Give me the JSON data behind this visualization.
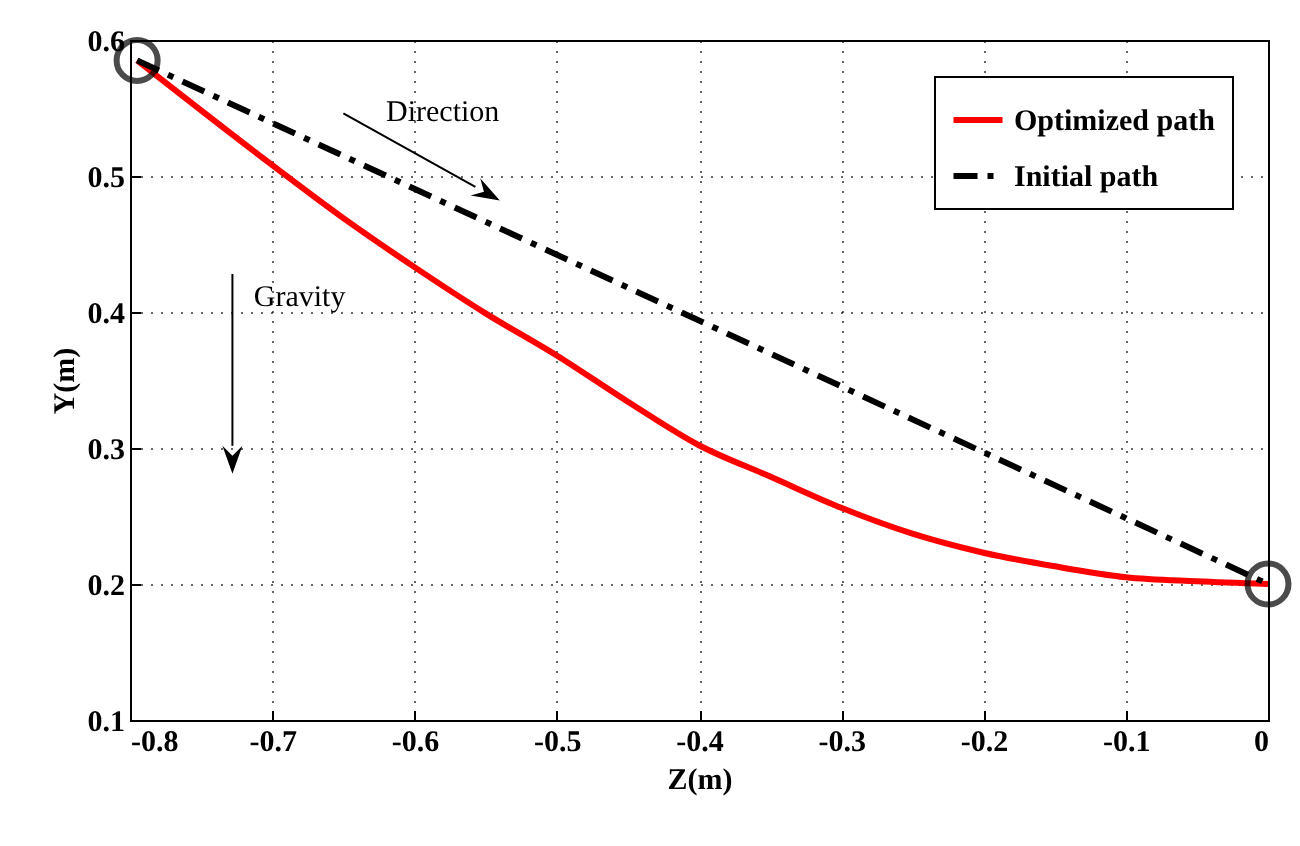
{
  "chart_data": {
    "type": "line",
    "xlabel": "Z(m)",
    "ylabel": "Y(m)",
    "annotations": [
      "Direction",
      "Gravity"
    ],
    "xlim": [
      -0.8,
      0
    ],
    "ylim": [
      0.1,
      0.6
    ],
    "xticks": [
      -0.8,
      -0.7,
      -0.6,
      -0.5,
      -0.4,
      -0.3,
      -0.2,
      -0.1,
      0
    ],
    "yticks": [
      0.1,
      0.2,
      0.3,
      0.4,
      0.5,
      0.6
    ],
    "grid": true,
    "legend": "top right",
    "series": [
      {
        "name": "Optimized path",
        "color": "#ff0000",
        "line_style": "solid",
        "marker": "none",
        "x": [
          -0.795,
          -0.7,
          -0.65,
          -0.6,
          -0.55,
          -0.5,
          -0.45,
          -0.4,
          -0.35,
          -0.3,
          -0.25,
          -0.2,
          -0.15,
          -0.1,
          -0.05,
          0
        ],
        "values": [
          0.585,
          0.508,
          0.469,
          0.433,
          0.399,
          0.368,
          0.334,
          0.302,
          0.279,
          0.256,
          0.237,
          0.223,
          0.213,
          0.205,
          0.202,
          0.2
        ]
      },
      {
        "name": "Initial path",
        "color": "#000000",
        "line_style": "dashed",
        "marker": "none",
        "x": [
          -0.795,
          0
        ],
        "values": [
          0.585,
          0.2
        ]
      },
      {
        "type": "scatter",
        "color": "#000000",
        "marker": "circle",
        "x": [
          -0.795,
          0
        ],
        "values": [
          0.585,
          0.2
        ]
      }
    ]
  }
}
